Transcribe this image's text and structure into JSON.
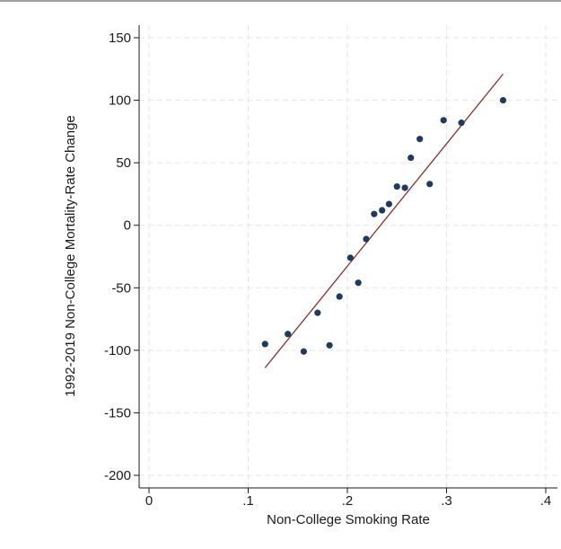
{
  "chart_data": {
    "type": "scatter",
    "title": "",
    "xlabel": "Non-College Smoking Rate",
    "ylabel": "1992-2019 Non-College Mortality-Rate Change",
    "xlim": [
      0,
      0.4
    ],
    "ylim": [
      -200,
      150
    ],
    "x_ticks": [
      0,
      0.1,
      0.2,
      0.3,
      0.4
    ],
    "x_tick_labels": [
      "0",
      ".1",
      ".2",
      ".3",
      ".4"
    ],
    "y_ticks": [
      -200,
      -150,
      -100,
      -50,
      0,
      50,
      100,
      150
    ],
    "y_tick_labels": [
      "-200",
      "-150",
      "-100",
      "-50",
      "0",
      "50",
      "100",
      "150"
    ],
    "grid": true,
    "colors": {
      "points": "#1e3a5f",
      "fit_line": "#8b2e2e",
      "grid": "#e6e6e6"
    },
    "points": [
      {
        "x": 0.117,
        "y": -95
      },
      {
        "x": 0.14,
        "y": -87
      },
      {
        "x": 0.156,
        "y": -101
      },
      {
        "x": 0.17,
        "y": -70
      },
      {
        "x": 0.182,
        "y": -96
      },
      {
        "x": 0.192,
        "y": -57
      },
      {
        "x": 0.203,
        "y": -26
      },
      {
        "x": 0.211,
        "y": -46
      },
      {
        "x": 0.219,
        "y": -11
      },
      {
        "x": 0.227,
        "y": 9
      },
      {
        "x": 0.235,
        "y": 12
      },
      {
        "x": 0.242,
        "y": 17
      },
      {
        "x": 0.25,
        "y": 31
      },
      {
        "x": 0.258,
        "y": 30
      },
      {
        "x": 0.264,
        "y": 54
      },
      {
        "x": 0.273,
        "y": 69
      },
      {
        "x": 0.283,
        "y": 33
      },
      {
        "x": 0.297,
        "y": 84
      },
      {
        "x": 0.315,
        "y": 82
      },
      {
        "x": 0.357,
        "y": 100
      }
    ],
    "fit_line": {
      "x": [
        0.117,
        0.357
      ],
      "y": [
        -114,
        121
      ]
    }
  }
}
